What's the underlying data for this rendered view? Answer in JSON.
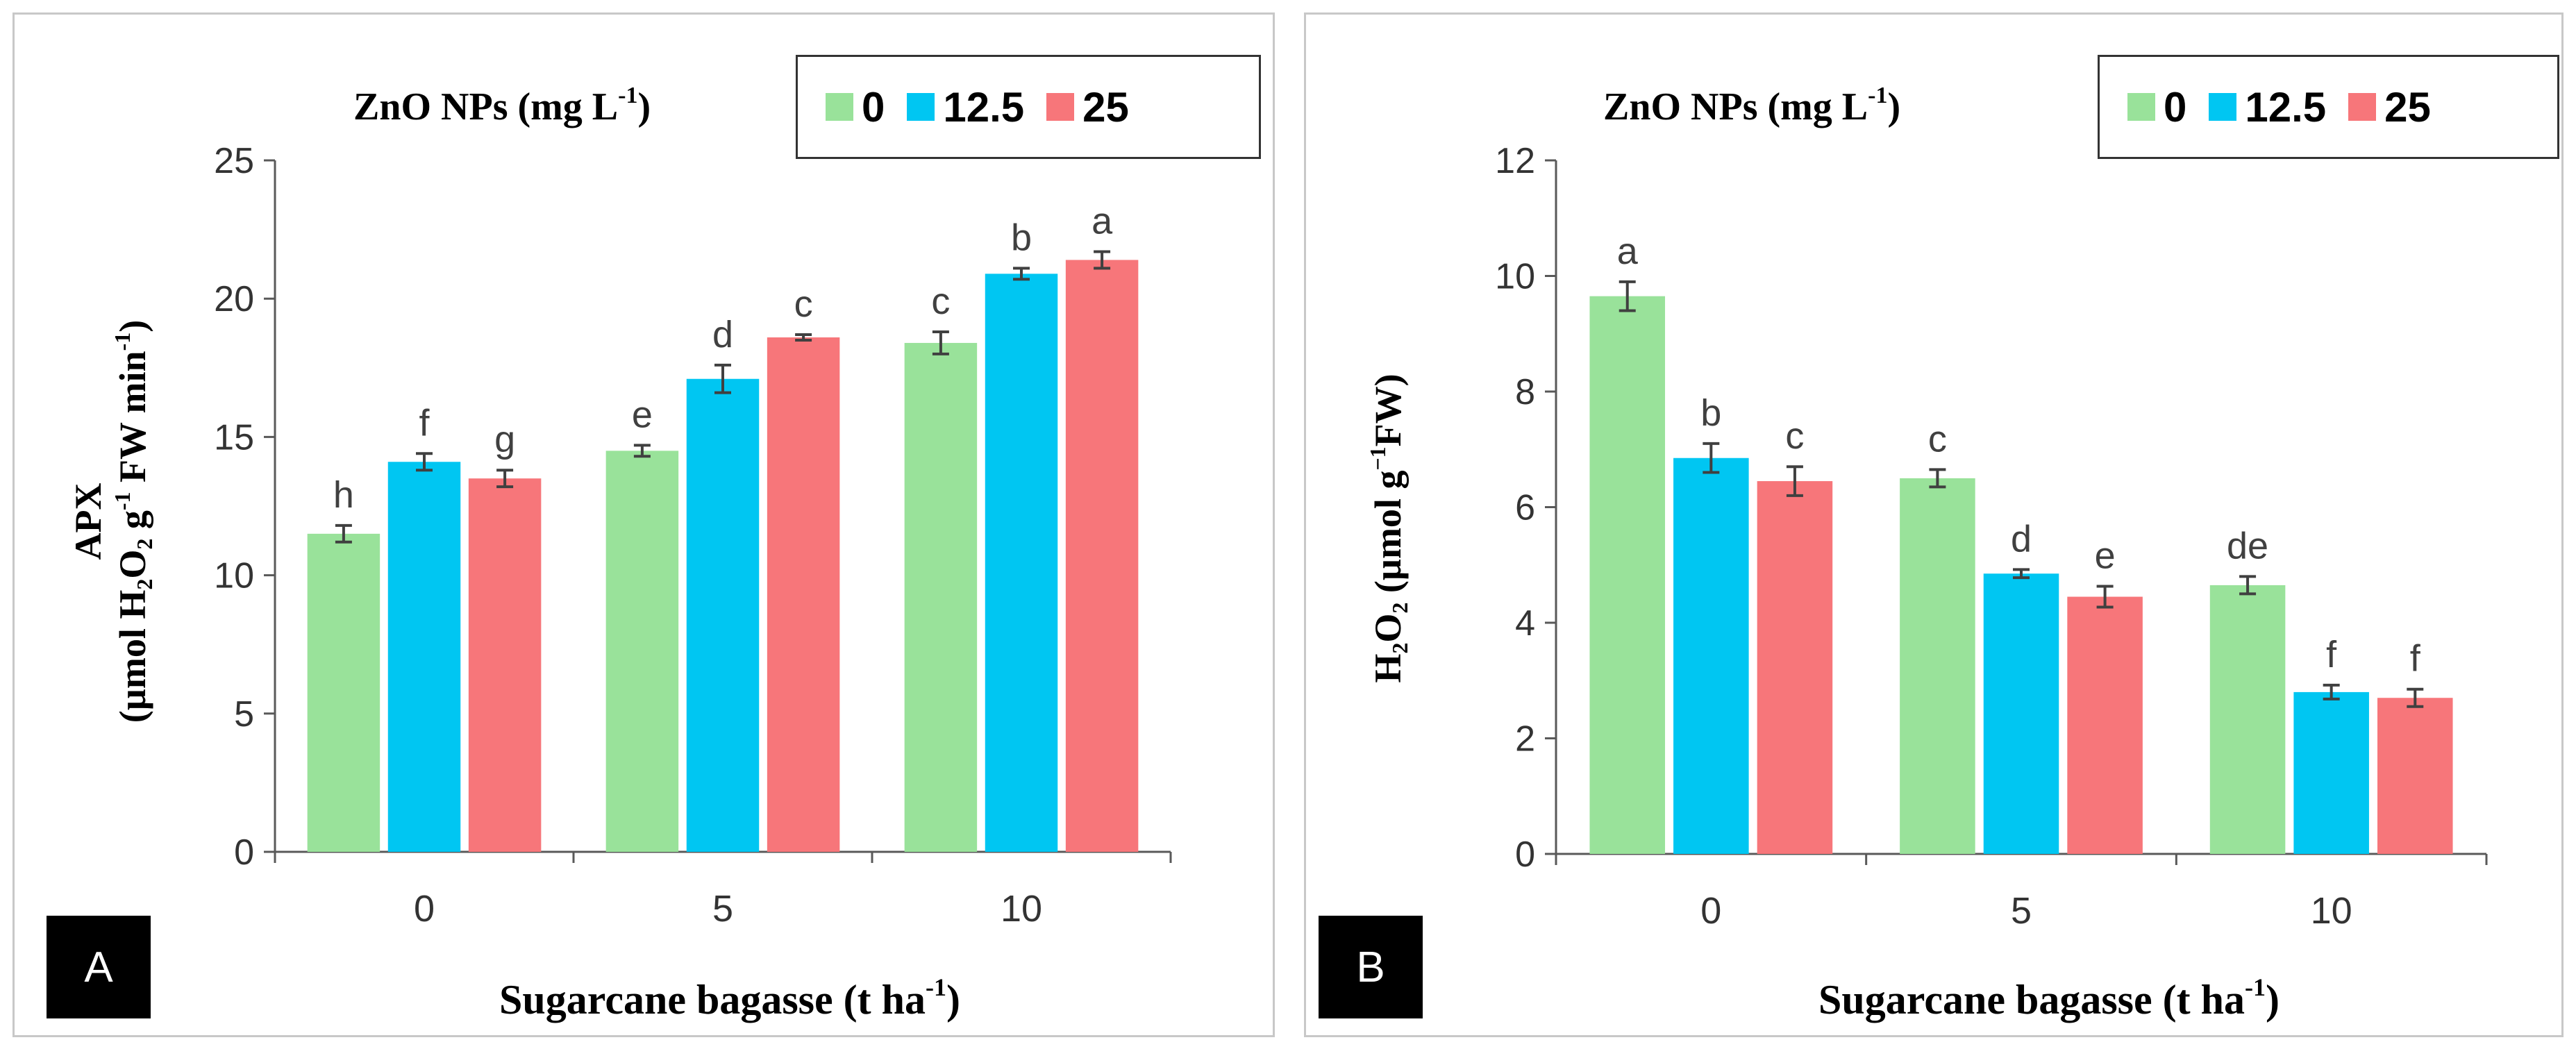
{
  "legend": {
    "title_text": "ZnO NPs (mg L",
    "title_sup": "-1",
    "title_end": ")",
    "items": [
      {
        "label": "0",
        "color": "#99e29a"
      },
      {
        "label": "12.5",
        "color": "#00c6f2"
      },
      {
        "label": "25",
        "color": "#f7767a"
      }
    ]
  },
  "chart_data": [
    {
      "type": "bar",
      "panel": "A",
      "categories": [
        "0",
        "5",
        "10"
      ],
      "xlabel": {
        "text": "Sugarcane bagasse (t ha",
        "sup": "-1",
        "end": ")"
      },
      "ylabel": {
        "line1": "APX",
        "line2_parts": [
          "(µmol H",
          "2",
          "O",
          "2",
          " g",
          "-1",
          "  FW min",
          "-1",
          ")"
        ]
      },
      "ylim": [
        0,
        25
      ],
      "yticks": [
        0,
        5,
        10,
        15,
        20,
        25
      ],
      "series": [
        {
          "name": "0",
          "color": "#99e29a",
          "values": [
            11.5,
            14.5,
            18.4
          ],
          "errors": [
            0.3,
            0.2,
            0.4
          ],
          "letters": [
            "h",
            "e",
            "c"
          ]
        },
        {
          "name": "12.5",
          "color": "#00c6f2",
          "values": [
            14.1,
            17.1,
            20.9
          ],
          "errors": [
            0.3,
            0.5,
            0.2
          ],
          "letters": [
            "f",
            "d",
            "b"
          ]
        },
        {
          "name": "25",
          "color": "#f7767a",
          "values": [
            13.5,
            18.6,
            21.4
          ],
          "errors": [
            0.3,
            0.1,
            0.3
          ],
          "letters": [
            "g",
            "c",
            "a"
          ]
        }
      ]
    },
    {
      "type": "bar",
      "panel": "B",
      "categories": [
        "0",
        "5",
        "10"
      ],
      "xlabel": {
        "text": "Sugarcane bagasse (t ha",
        "sup": "-1",
        "end": ")"
      },
      "ylabel": {
        "parts": [
          "H",
          "2",
          "O",
          "2",
          " (µmol g",
          "−1",
          "FW)"
        ]
      },
      "ylim": [
        0,
        12
      ],
      "yticks": [
        0,
        2,
        4,
        6,
        8,
        10,
        12
      ],
      "series": [
        {
          "name": "0",
          "color": "#99e29a",
          "values": [
            9.65,
            6.5,
            4.65
          ],
          "errors": [
            0.25,
            0.15,
            0.15
          ],
          "letters": [
            "a",
            "c",
            "de"
          ]
        },
        {
          "name": "12.5",
          "color": "#00c6f2",
          "values": [
            6.85,
            4.85,
            2.8
          ],
          "errors": [
            0.25,
            0.07,
            0.12
          ],
          "letters": [
            "b",
            "d",
            "f"
          ]
        },
        {
          "name": "25",
          "color": "#f7767a",
          "values": [
            6.45,
            4.45,
            2.7
          ],
          "errors": [
            0.25,
            0.18,
            0.15
          ],
          "letters": [
            "c",
            "e",
            "f"
          ]
        }
      ]
    }
  ],
  "panel_letters": [
    "A",
    "B"
  ]
}
